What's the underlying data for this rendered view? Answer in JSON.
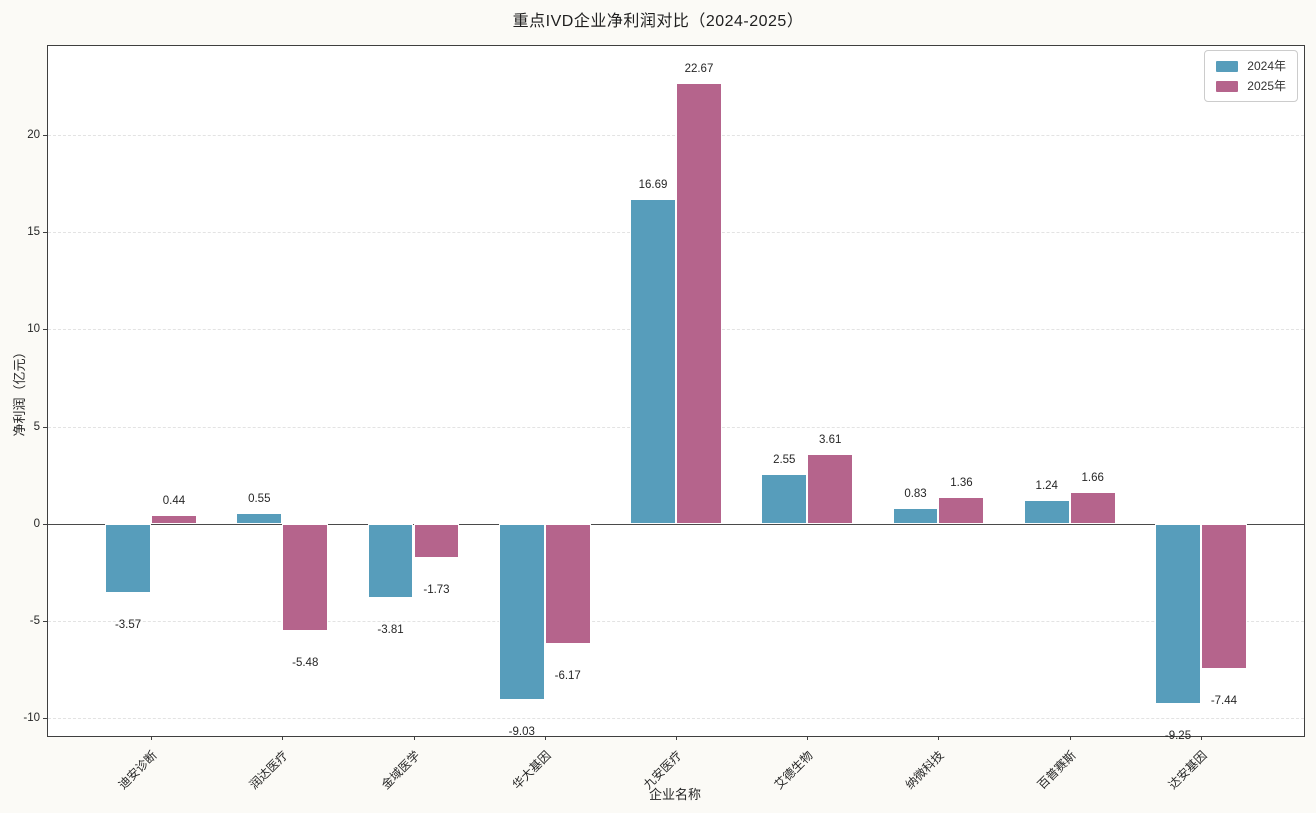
{
  "chart_data": {
    "type": "bar",
    "title": "重点IVD企业净利润对比（2024-2025）",
    "xlabel": "企业名称",
    "ylabel": "净利润（亿元）",
    "categories": [
      "迪安诊断",
      "润达医疗",
      "金域医学",
      "华大基因",
      "九安医疗",
      "艾德生物",
      "纳微科技",
      "百普赛斯",
      "达安基因"
    ],
    "series": [
      {
        "name": "2024年",
        "color": "#579DBB",
        "values": [
          -3.57,
          0.55,
          -3.81,
          -9.03,
          16.69,
          2.55,
          0.83,
          1.24,
          -9.25
        ]
      },
      {
        "name": "2025年",
        "color": "#B5648C",
        "values": [
          0.44,
          -5.48,
          -1.73,
          -6.17,
          22.67,
          3.61,
          1.36,
          1.66,
          -7.44
        ]
      }
    ],
    "yticks": [
      -10,
      -5,
      0,
      5,
      10,
      15,
      20
    ],
    "ylim": [
      -10.9,
      24.56
    ],
    "xlim": [
      -0.785,
      8.785
    ],
    "bar_width": 0.35,
    "bar_offset": 0.175,
    "grid": "horizontal-dashed",
    "legend_position": "upper right",
    "colors": {
      "figure_bg": "#fbfaf6",
      "plot_bg": "#ffffff",
      "grid_line": "#e3e3e3",
      "zero_line": "#4a4a4a",
      "axis_spine": "#3f3f3f",
      "text": "#262626",
      "bar_edge": "#ffffff"
    }
  }
}
